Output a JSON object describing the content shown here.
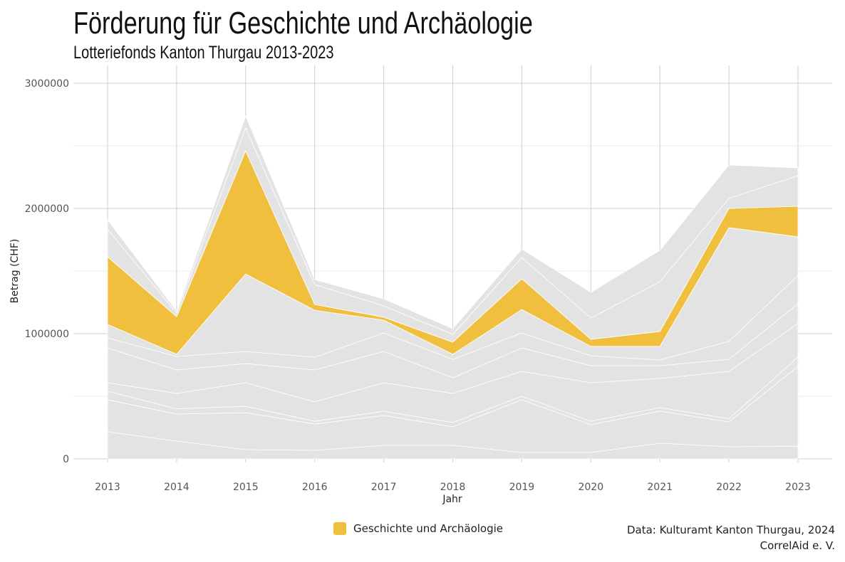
{
  "chart_data": {
    "type": "area",
    "stacked": true,
    "title": "Förderung für Geschichte und Archäologie",
    "subtitle": "Lotteriefonds Kanton Thurgau 2013-2023",
    "xlabel": "Jahr",
    "ylabel": "Betrag (CHF)",
    "x": [
      2013,
      2014,
      2015,
      2016,
      2017,
      2018,
      2019,
      2020,
      2021,
      2022,
      2023
    ],
    "xticks": [
      "2013",
      "2014",
      "2015",
      "2016",
      "2017",
      "2018",
      "2019",
      "2020",
      "2021",
      "2022",
      "2023"
    ],
    "yticks": [
      "0",
      "1000000",
      "2000000",
      "3000000"
    ],
    "ylim": [
      0,
      3150000
    ],
    "grid": true,
    "legend_position": "bottom",
    "highlight": {
      "name": "Geschichte und Archäologie",
      "color": "#F0BF3E",
      "layer_index": 7
    },
    "other_color": "#E3E3E3",
    "layers": [
      [
        216000,
        142000,
        74000,
        68000,
        108000,
        108000,
        51000,
        51000,
        125000,
        97000,
        102000
      ],
      [
        256000,
        216000,
        295000,
        210000,
        239000,
        148000,
        421000,
        222000,
        256000,
        198000,
        637000
      ],
      [
        68000,
        42000,
        51000,
        22000,
        33000,
        34000,
        28000,
        27000,
        29000,
        25000,
        74000
      ],
      [
        68000,
        123000,
        188000,
        155000,
        228000,
        233000,
        199000,
        308000,
        232000,
        379000,
        267000
      ],
      [
        278000,
        187000,
        153000,
        255000,
        250000,
        125000,
        187000,
        136000,
        102000,
        96000,
        159000
      ],
      [
        80000,
        108000,
        97000,
        102000,
        148000,
        147000,
        120000,
        80000,
        46000,
        143000,
        227000
      ],
      [
        108000,
        17000,
        619000,
        375000,
        102000,
        40000,
        187000,
        74000,
        108000,
        909000,
        307000
      ],
      [
        540000,
        301000,
        983000,
        46000,
        23000,
        97000,
        245000,
        57000,
        119000,
        153000,
        244000
      ],
      [
        221000,
        29000,
        182000,
        159000,
        91000,
        62000,
        170000,
        170000,
        398000,
        80000,
        244000
      ],
      [
        74000,
        17000,
        97000,
        40000,
        56000,
        46000,
        68000,
        205000,
        250000,
        267000,
        63000
      ]
    ],
    "source": "Data: Kulturamt Kanton Thurgau, 2024",
    "credit": "CorrelAid e. V."
  }
}
